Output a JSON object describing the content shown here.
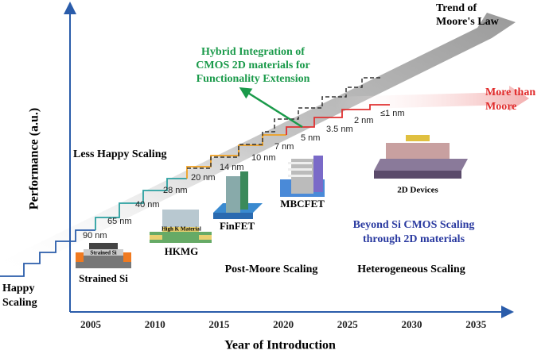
{
  "axes": {
    "y_label": "Performance (a.u.)",
    "x_label": "Year of Introduction",
    "x_ticks": [
      2005,
      2010,
      2015,
      2020,
      2025,
      2030,
      2035
    ]
  },
  "trends": {
    "moore": [
      "Trend of",
      "Moore's Law"
    ],
    "more_than_moore": [
      "More than",
      "Moore"
    ]
  },
  "hybrid": [
    "Hybrid Integration of",
    "CMOS 2D materials for",
    "Functionality Extension"
  ],
  "nodes": [
    "90 nm",
    "65 nm",
    "40 nm",
    "28 nm",
    "20 nm",
    "14 nm",
    "10 nm",
    "7 nm",
    "5 nm",
    "3.5 nm",
    "2 nm",
    "≤1 nm"
  ],
  "devices": {
    "strained_si": "Strained Si",
    "strained_si_layer": "Strained Si",
    "hkmg": "HKMG",
    "high_k": "High K Material",
    "finfet": "FinFET",
    "mbcfet": "MBCFET",
    "two_d": "2D Devices"
  },
  "eras": {
    "happy": [
      "Happy",
      "Scaling"
    ],
    "less_happy": "Less Happy Scaling",
    "post_moore": "Post-Moore Scaling",
    "heterogeneous": "Heterogeneous Scaling",
    "beyond": [
      "Beyond Si CMOS Scaling",
      "through 2D materials"
    ]
  }
}
